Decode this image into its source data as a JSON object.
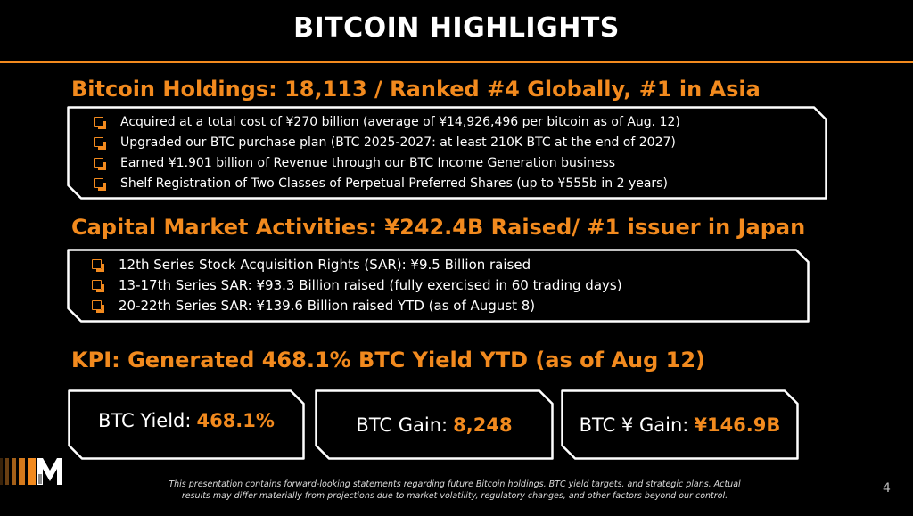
{
  "title": "BITCOIN HIGHLIGHTS",
  "colors": {
    "accent": "#f28a1e",
    "background": "#000000",
    "text": "#ffffff"
  },
  "holdings": {
    "heading": "Bitcoin Holdings: 18,113 / Ranked #4 Globally, #1 in Asia",
    "bullets": [
      "Acquired at a total cost of ¥270 billion (average of ¥14,926,496 per bitcoin as of Aug. 12)",
      "Upgraded our BTC purchase plan (BTC 2025-2027: at least 210K BTC at the end of 2027)",
      "Earned ¥1.901 billion of Revenue through our BTC Income Generation business",
      "Shelf Registration of Two Classes of Perpetual Preferred Shares (up to ¥555b in 2 years)"
    ]
  },
  "capital": {
    "heading": "Capital Market Activities: ¥242.4B Raised/ #1 issuer in Japan",
    "bullets": [
      "12th Series Stock Acquisition Rights (SAR): ¥9.5 Billion raised",
      "13-17th Series SAR: ¥93.3 Billion raised (fully exercised in 60 trading days)",
      "20-22th Series SAR: ¥139.6 Billion raised YTD (as of August 8)"
    ]
  },
  "kpi": {
    "heading": "KPI: Generated 468.1% BTC Yield YTD (as of Aug 12)",
    "cards": [
      {
        "label": "BTC Yield:",
        "value": "468.1%"
      },
      {
        "label": "BTC Gain:",
        "value": "8,248"
      },
      {
        "label": "BTC ¥ Gain:",
        "value": "¥146.9B"
      }
    ]
  },
  "logo": {
    "icon": "metaplanet-m-logo"
  },
  "disclaimer": {
    "line1": "This presentation contains forward-looking statements regarding future Bitcoin holdings, BTC yield targets, and strategic plans. Actual",
    "line2": "results may differ materially from projections due to market volatility, regulatory changes, and other factors beyond our control."
  },
  "page_number": "4"
}
